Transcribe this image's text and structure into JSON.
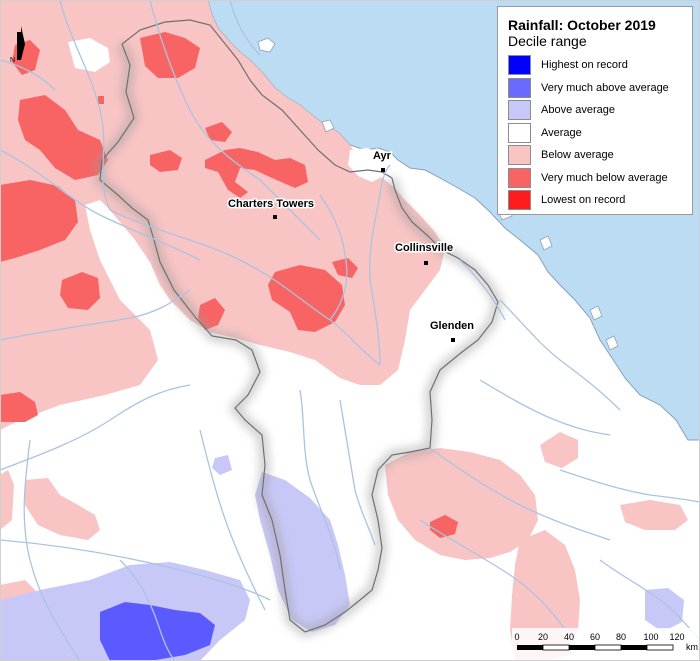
{
  "legend": {
    "title": "Rainfall: October 2019",
    "subtitle": "Decile range",
    "items": [
      {
        "label": "Highest on record",
        "color": "#0000ff"
      },
      {
        "label": "Very much above average",
        "color": "#6a6aff"
      },
      {
        "label": "Above average",
        "color": "#c8c8f8"
      },
      {
        "label": "Average",
        "color": "#ffffff"
      },
      {
        "label": "Below average",
        "color": "#f8c4c4"
      },
      {
        "label": "Very much below average",
        "color": "#f86464"
      },
      {
        "label": "Lowest on record",
        "color": "#ff1c1c"
      }
    ]
  },
  "places": {
    "ayr": "Ayr",
    "charters_towers": "Charters Towers",
    "collinsville": "Collinsville",
    "glenden": "Glenden"
  },
  "north_arrow": "N",
  "scale_bar": {
    "ticks": [
      "0",
      "20",
      "40",
      "60",
      "80",
      "100",
      "120"
    ],
    "unit": "km"
  },
  "colors": {
    "sea": "#bcdcf4",
    "rivers": "#aac4e0",
    "coast": "#8aa0b8"
  }
}
